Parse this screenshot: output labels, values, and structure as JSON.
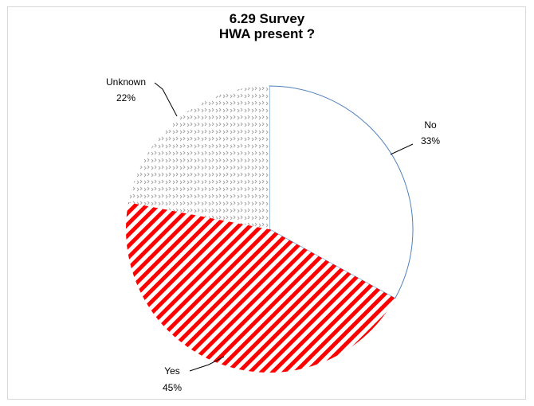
{
  "chart_data": {
    "type": "pie",
    "title": [
      "6.29 Survey",
      "HWA present ?"
    ],
    "start_angle_deg": 0,
    "direction": "clockwise",
    "slices": [
      {
        "label": "No",
        "value": 33,
        "value_label": "33%",
        "fill": "none",
        "stroke": "#4f81bd"
      },
      {
        "label": "Yes",
        "value": 45,
        "value_label": "45%",
        "fill": "red-diagonal-stripes",
        "stroke": "#ff0000"
      },
      {
        "label": "Unknown",
        "value": 22,
        "value_label": "22%",
        "fill": "gray-dotted-zigzag",
        "stroke": "#bfbfbf"
      }
    ],
    "legend": "none",
    "colors": {
      "stripe": "#ff0000",
      "dots": "#a6a6a6",
      "outline": "#4f81bd"
    }
  }
}
